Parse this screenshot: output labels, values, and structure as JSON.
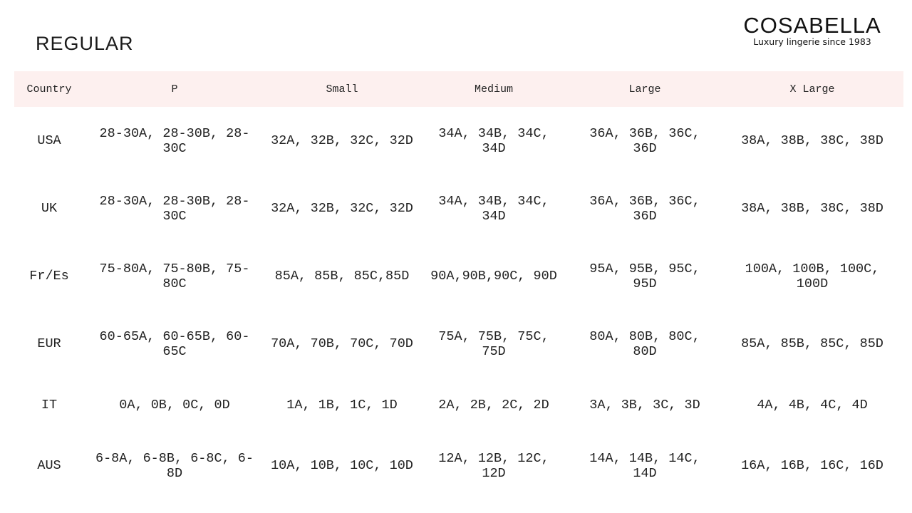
{
  "title": "REGULAR",
  "logo": {
    "brand": "COSABELLA",
    "tagline": "Luxury lingerie since 1983"
  },
  "colors": {
    "header_bg": "#fdf0ef"
  },
  "table": {
    "headers": [
      "Country",
      "P",
      "Small",
      "Medium",
      "Large",
      "X Large"
    ],
    "rows": [
      [
        "USA",
        "28-30A, 28-30B, 28-30C",
        "32A, 32B, 32C, 32D",
        "34A, 34B, 34C, 34D",
        "36A, 36B, 36C, 36D",
        "38A, 38B, 38C, 38D"
      ],
      [
        "UK",
        "28-30A, 28-30B, 28-30C",
        "32A, 32B, 32C, 32D",
        "34A, 34B, 34C, 34D",
        "36A, 36B, 36C, 36D",
        "38A, 38B, 38C, 38D"
      ],
      [
        "Fr/Es",
        "75-80A, 75-80B, 75-80C",
        "85A, 85B, 85C,85D",
        "90A,90B,90C, 90D",
        "95A, 95B, 95C, 95D",
        "100A, 100B, 100C, 100D"
      ],
      [
        "EUR",
        "60-65A, 60-65B, 60-65C",
        "70A, 70B, 70C, 70D",
        "75A, 75B, 75C, 75D",
        "80A, 80B, 80C, 80D",
        "85A, 85B, 85C, 85D"
      ],
      [
        "IT",
        "0A, 0B, 0C, 0D",
        "1A, 1B, 1C, 1D",
        "2A, 2B, 2C, 2D",
        "3A, 3B, 3C, 3D",
        "4A, 4B, 4C, 4D"
      ],
      [
        "AUS",
        "6-8A, 6-8B, 6-8C, 6-8D",
        "10A, 10B, 10C, 10D",
        "12A, 12B, 12C, 12D",
        "14A, 14B, 14C, 14D",
        "16A, 16B, 16C, 16D"
      ]
    ]
  }
}
